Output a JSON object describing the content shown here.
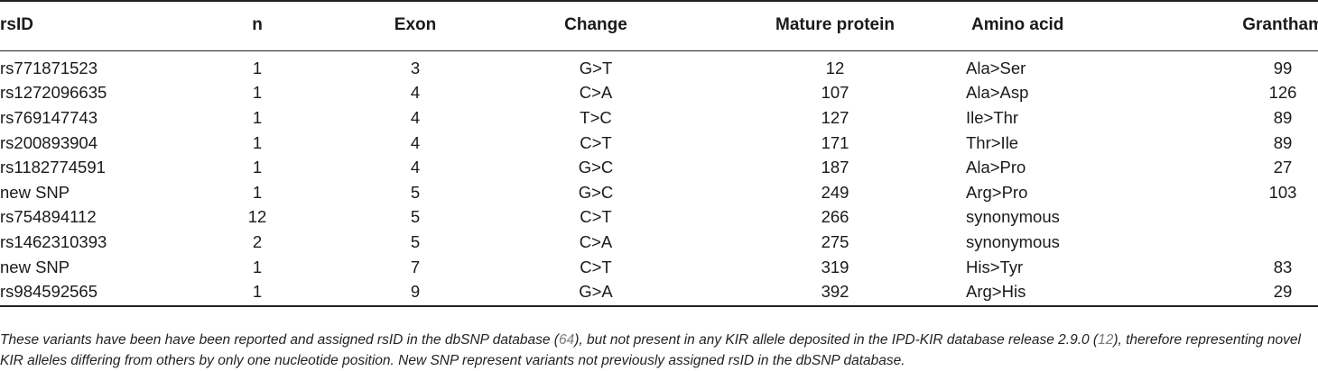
{
  "table": {
    "headers": {
      "rsid": "rsID",
      "n": "n",
      "exon": "Exon",
      "change": "Change",
      "mature": "Mature protein",
      "amino": "Amino acid",
      "grantham": "Grantham"
    },
    "rows": [
      {
        "rsid": "rs771871523",
        "n": "1",
        "exon": "3",
        "change": "G>T",
        "mature": "12",
        "amino": "Ala>Ser",
        "grantham": "99"
      },
      {
        "rsid": "rs1272096635",
        "n": "1",
        "exon": "4",
        "change": "C>A",
        "mature": "107",
        "amino": "Ala>Asp",
        "grantham": "126"
      },
      {
        "rsid": "rs769147743",
        "n": "1",
        "exon": "4",
        "change": "T>C",
        "mature": "127",
        "amino": "Ile>Thr",
        "grantham": "89"
      },
      {
        "rsid": "rs200893904",
        "n": "1",
        "exon": "4",
        "change": "C>T",
        "mature": "171",
        "amino": "Thr>Ile",
        "grantham": "89"
      },
      {
        "rsid": "rs1182774591",
        "n": "1",
        "exon": "4",
        "change": "G>C",
        "mature": "187",
        "amino": "Ala>Pro",
        "grantham": "27"
      },
      {
        "rsid": "new SNP",
        "n": "1",
        "exon": "5",
        "change": "G>C",
        "mature": "249",
        "amino": "Arg>Pro",
        "grantham": "103"
      },
      {
        "rsid": "rs754894112",
        "n": "12",
        "exon": "5",
        "change": "C>T",
        "mature": "266",
        "amino": "synonymous",
        "grantham": ""
      },
      {
        "rsid": "rs1462310393",
        "n": "2",
        "exon": "5",
        "change": "C>A",
        "mature": "275",
        "amino": "synonymous",
        "grantham": ""
      },
      {
        "rsid": "new SNP",
        "n": "1",
        "exon": "7",
        "change": "C>T",
        "mature": "319",
        "amino": "His>Tyr",
        "grantham": "83"
      },
      {
        "rsid": "rs984592565",
        "n": "1",
        "exon": "9",
        "change": "G>A",
        "mature": "392",
        "amino": "Arg>His",
        "grantham": "29"
      }
    ]
  },
  "footnote": {
    "part1": "These variants have been have been reported and assigned rsID in the dbSNP database (",
    "ref1": "64",
    "part2": "), but not present in any KIR allele deposited in the IPD-KIR database release 2.9.0 (",
    "ref2": "12",
    "part3": "), therefore representing novel KIR alleles differing from others by only one nucleotide position. New SNP represent variants not previously assigned rsID in the dbSNP database."
  }
}
